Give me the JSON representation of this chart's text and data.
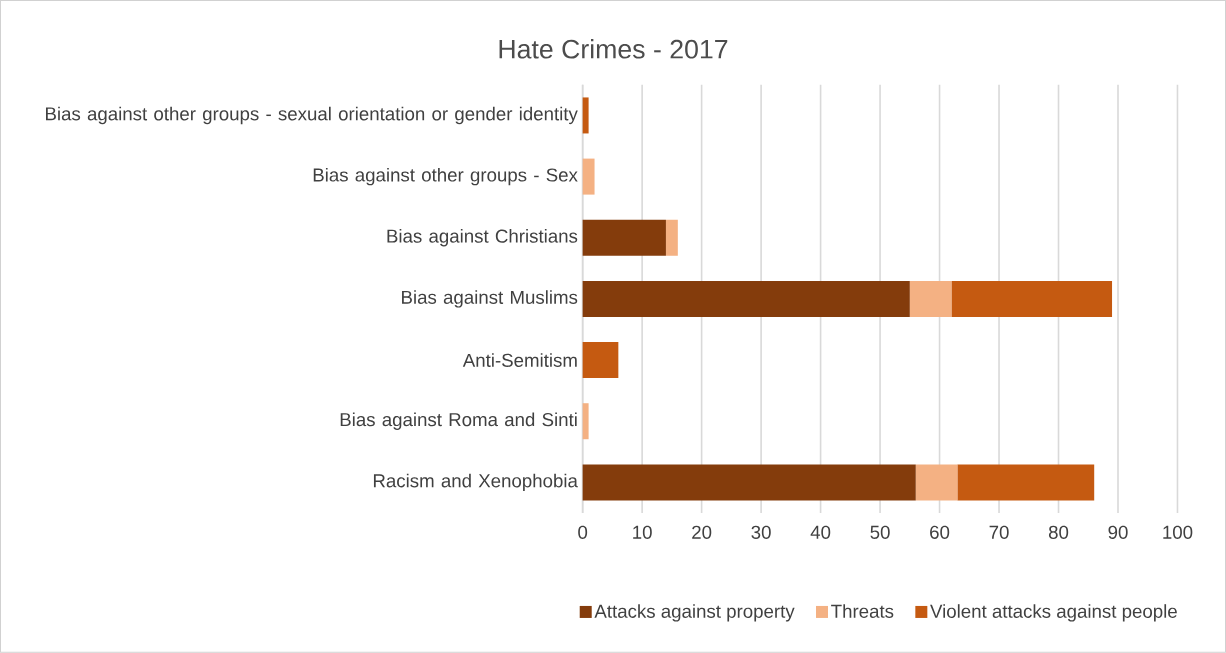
{
  "chart_data": {
    "type": "bar",
    "title": "Hate Crimes - 2017",
    "orientation": "horizontal",
    "stacked": true,
    "categories": [
      "Bias against other groups - sexual orientation or gender identity",
      "Bias against other groups - Sex",
      "Bias against Christians",
      "Bias against Muslims",
      "Anti-Semitism",
      "Bias against Roma and Sinti",
      "Racism and Xenophobia"
    ],
    "series": [
      {
        "name": "Attacks against property",
        "color": "#843c0c",
        "values": [
          0,
          0,
          14,
          55,
          0,
          0,
          56
        ]
      },
      {
        "name": "Threats",
        "color": "#f4b183",
        "values": [
          0,
          2,
          2,
          7,
          0,
          1,
          7
        ]
      },
      {
        "name": "Violent attacks against people",
        "color": "#c55a11",
        "values": [
          1,
          0,
          0,
          27,
          6,
          0,
          23
        ]
      }
    ],
    "xlim": [
      0,
      100
    ],
    "xticks": [
      0,
      10,
      20,
      30,
      40,
      50,
      60,
      70,
      80,
      90,
      100
    ],
    "grid": "x",
    "legend": "bottom"
  }
}
